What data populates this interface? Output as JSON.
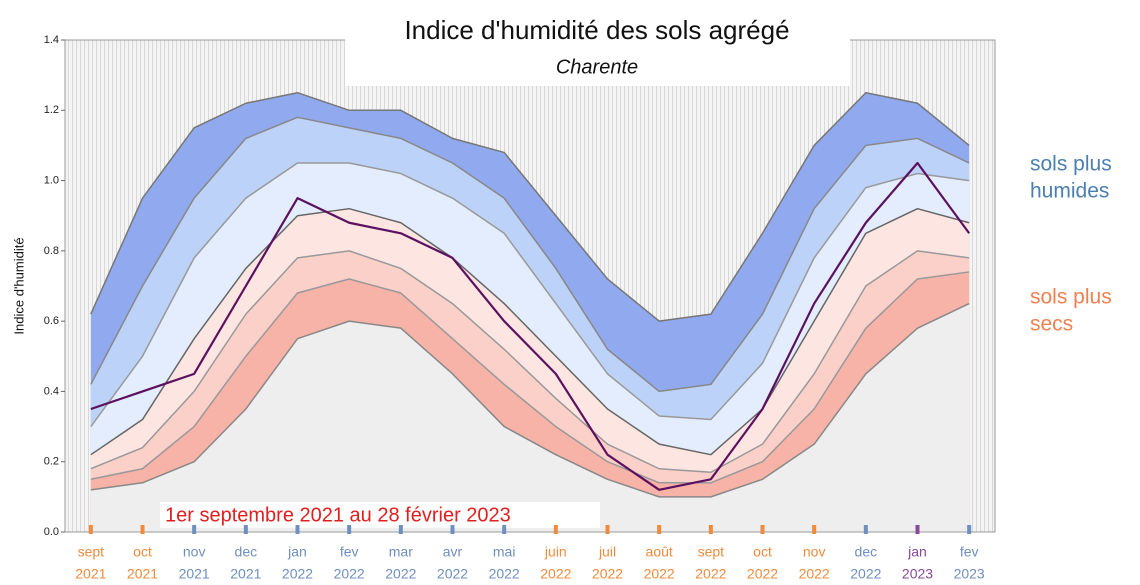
{
  "chart_data": {
    "type": "line",
    "title": "Indice d'humidité des sols agrégé",
    "subtitle": "Charente",
    "y_label": "Indice d'humidité",
    "annotation": "1er septembre 2021 au 28 février 2023",
    "side_labels": [
      {
        "lines": [
          "sols plus",
          "humides"
        ],
        "color": "#4a7fb0"
      },
      {
        "lines": [
          "sols plus",
          "secs"
        ],
        "color": "#f08050"
      }
    ],
    "x_labels": [
      {
        "month": "sept",
        "year": "2021",
        "color": "#f08a3c"
      },
      {
        "month": "oct",
        "year": "2021",
        "color": "#f08a3c"
      },
      {
        "month": "nov",
        "year": "2021",
        "color": "#6e8fbf"
      },
      {
        "month": "dec",
        "year": "2021",
        "color": "#6e8fbf"
      },
      {
        "month": "jan",
        "year": "2022",
        "color": "#6e8fbf"
      },
      {
        "month": "fev",
        "year": "2022",
        "color": "#6e8fbf"
      },
      {
        "month": "mar",
        "year": "2022",
        "color": "#6e8fbf"
      },
      {
        "month": "avr",
        "year": "2022",
        "color": "#6e8fbf"
      },
      {
        "month": "mai",
        "year": "2022",
        "color": "#6e8fbf"
      },
      {
        "month": "juin",
        "year": "2022",
        "color": "#f08a3c"
      },
      {
        "month": "juil",
        "year": "2022",
        "color": "#f08a3c"
      },
      {
        "month": "août",
        "year": "2022",
        "color": "#f08a3c"
      },
      {
        "month": "sept",
        "year": "2022",
        "color": "#f08a3c"
      },
      {
        "month": "oct",
        "year": "2022",
        "color": "#f08a3c"
      },
      {
        "month": "nov",
        "year": "2022",
        "color": "#f08a3c"
      },
      {
        "month": "dec",
        "year": "2022",
        "color": "#6e8fbf"
      },
      {
        "month": "jan",
        "year": "2023",
        "color": "#8a4a9a"
      },
      {
        "month": "fev",
        "year": "2023",
        "color": "#6e8fbf"
      }
    ],
    "ylim": [
      0,
      1.4
    ],
    "yticks": [
      {
        "value": 0,
        "label": "0.0"
      },
      0.2,
      0.4,
      0.6,
      0.8,
      {
        "value": 1,
        "label": "1.0"
      },
      1.2,
      1.4
    ],
    "series": [
      {
        "color": "#777777",
        "fill": "#90a9ef",
        "values": [
          0.62,
          0.95,
          1.15,
          1.22,
          1.25,
          1.2,
          1.2,
          1.12,
          1.08,
          0.9,
          0.72,
          0.6,
          0.62,
          0.85,
          1.1,
          1.25,
          1.22,
          1.1
        ]
      },
      {
        "color": "#888888",
        "fill": "#bcd2f8",
        "values": [
          0.42,
          0.7,
          0.95,
          1.12,
          1.18,
          1.15,
          1.12,
          1.05,
          0.95,
          0.75,
          0.52,
          0.4,
          0.42,
          0.62,
          0.92,
          1.1,
          1.12,
          1.05
        ]
      },
      {
        "color": "#999999",
        "fill": "#e3edfd",
        "values": [
          0.3,
          0.5,
          0.78,
          0.95,
          1.05,
          1.05,
          1.02,
          0.95,
          0.85,
          0.65,
          0.45,
          0.33,
          0.32,
          0.48,
          0.78,
          0.98,
          1.02,
          1.0
        ]
      },
      {
        "color": "#666666",
        "fill": "#fde6e2",
        "values": [
          0.22,
          0.32,
          0.55,
          0.75,
          0.9,
          0.92,
          0.88,
          0.78,
          0.65,
          0.5,
          0.35,
          0.25,
          0.22,
          0.35,
          0.6,
          0.85,
          0.92,
          0.88
        ]
      },
      {
        "color": "#999999",
        "fill": "#fad0c8",
        "values": [
          0.18,
          0.24,
          0.4,
          0.62,
          0.78,
          0.8,
          0.75,
          0.65,
          0.52,
          0.38,
          0.25,
          0.18,
          0.17,
          0.25,
          0.45,
          0.7,
          0.8,
          0.78
        ]
      },
      {
        "color": "#999999",
        "fill": "#f7b3a8",
        "values": [
          0.15,
          0.18,
          0.3,
          0.5,
          0.68,
          0.72,
          0.68,
          0.55,
          0.42,
          0.3,
          0.2,
          0.14,
          0.14,
          0.2,
          0.35,
          0.58,
          0.72,
          0.74
        ]
      },
      {
        "color": "#888888",
        "fill": "#eeeeee",
        "values": [
          0.12,
          0.14,
          0.2,
          0.35,
          0.55,
          0.6,
          0.58,
          0.45,
          0.3,
          0.22,
          0.15,
          0.1,
          0.1,
          0.15,
          0.25,
          0.45,
          0.58,
          0.65
        ]
      },
      {
        "color": "#5b1060",
        "values": [
          0.35,
          0.4,
          0.45,
          0.7,
          0.95,
          0.88,
          0.85,
          0.78,
          0.6,
          0.45,
          0.22,
          0.12,
          0.15,
          0.35,
          0.65,
          0.88,
          1.05,
          0.85
        ]
      }
    ]
  }
}
